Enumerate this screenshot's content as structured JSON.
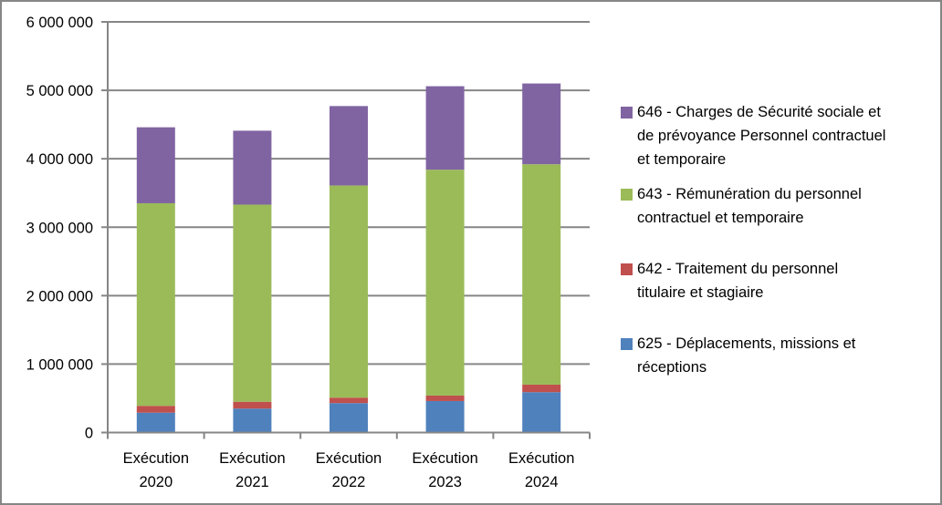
{
  "chart_data": {
    "type": "bar",
    "stacked": true,
    "title": "",
    "xlabel": "",
    "ylabel": "",
    "ylim": [
      0,
      6000000
    ],
    "yticks": [
      0,
      1000000,
      2000000,
      3000000,
      4000000,
      5000000,
      6000000
    ],
    "ytick_labels": [
      "0",
      "1 000 000",
      "2 000 000",
      "3 000 000",
      "4 000 000",
      "5 000 000",
      "6 000 000"
    ],
    "grid": true,
    "legend_position": "right",
    "categories": [
      [
        "Exécution",
        "2020"
      ],
      [
        "Exécution",
        "2021"
      ],
      [
        "Exécution",
        "2022"
      ],
      [
        "Exécution",
        "2023"
      ],
      [
        "Exécution",
        "2024"
      ]
    ],
    "series": [
      {
        "name": "625 - Déplacements, missions et réceptions",
        "legend_lines": [
          "625 - Déplacements, missions et",
          "réceptions"
        ],
        "color": "#4f81bd",
        "values": [
          290000,
          350000,
          430000,
          460000,
          590000
        ]
      },
      {
        "name": "642 - Traitement du personnel titulaire et stagiaire",
        "legend_lines": [
          "642 - Traitement du personnel",
          "titulaire et stagiaire"
        ],
        "color": "#c0504d",
        "values": [
          100000,
          100000,
          80000,
          80000,
          110000
        ]
      },
      {
        "name": "643 - Rémunération du personnel contractuel et temporaire",
        "legend_lines": [
          "643 - Rémunération du personnel",
          "contractuel et temporaire"
        ],
        "color": "#9bbb59",
        "values": [
          2960000,
          2880000,
          3100000,
          3300000,
          3220000
        ]
      },
      {
        "name": "646 - Charges de Sécurité sociale et de prévoyance Personnel contractuel et temporaire",
        "legend_lines": [
          "646 - Charges de Sécurité sociale et",
          "de prévoyance Personnel contractuel",
          "et temporaire"
        ],
        "color": "#8064a2",
        "values": [
          1110000,
          1080000,
          1160000,
          1220000,
          1180000
        ]
      }
    ]
  }
}
